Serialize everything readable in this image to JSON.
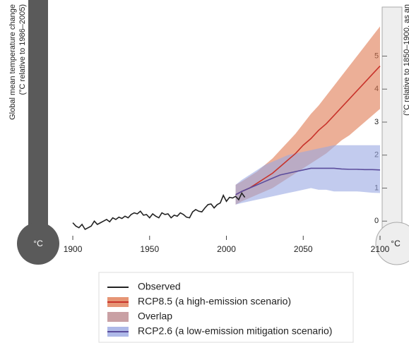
{
  "chart_data": {
    "type": "line",
    "y_axis_label": [
      "Global mean temperature change",
      "(°C relative to 1986–2005)"
    ],
    "y2_axis_label": "(°C relative to 1850–1900, as an",
    "unit_label": "°C",
    "xlim": [
      1894,
      2100
    ],
    "xticks": [
      1900,
      1950,
      2000,
      2050,
      2100
    ],
    "y2lim": [
      -0.4,
      6.7
    ],
    "y2ticks": [
      0,
      1,
      2,
      3,
      4,
      5
    ],
    "series": [
      {
        "name": "Observed",
        "color": "#222222",
        "axis": "y2",
        "x": [
          1900,
          1902,
          1904,
          1906,
          1908,
          1910,
          1912,
          1914,
          1916,
          1918,
          1920,
          1922,
          1924,
          1926,
          1928,
          1930,
          1932,
          1934,
          1936,
          1938,
          1940,
          1942,
          1944,
          1946,
          1948,
          1950,
          1952,
          1954,
          1956,
          1958,
          1960,
          1962,
          1964,
          1966,
          1968,
          1970,
          1972,
          1974,
          1976,
          1978,
          1980,
          1982,
          1984,
          1986,
          1988,
          1990,
          1992,
          1994,
          1996,
          1998,
          2000,
          2002,
          2004,
          2006,
          2008,
          2010,
          2012
        ],
        "values": [
          -0.05,
          -0.15,
          -0.2,
          -0.1,
          -0.25,
          -0.2,
          -0.15,
          0.0,
          -0.1,
          -0.05,
          0.0,
          0.05,
          -0.02,
          0.1,
          0.05,
          0.12,
          0.08,
          0.15,
          0.1,
          0.2,
          0.25,
          0.22,
          0.3,
          0.18,
          0.2,
          0.1,
          0.22,
          0.15,
          0.1,
          0.25,
          0.2,
          0.22,
          0.1,
          0.18,
          0.15,
          0.25,
          0.2,
          0.12,
          0.1,
          0.28,
          0.35,
          0.3,
          0.28,
          0.4,
          0.5,
          0.52,
          0.4,
          0.5,
          0.55,
          0.78,
          0.6,
          0.72,
          0.7,
          0.75,
          0.65,
          0.85,
          0.72
        ]
      },
      {
        "name": "RCP8.5 (a high-emission scenario)",
        "color": "#c8332b",
        "band_color": "#e07a52",
        "axis": "y2",
        "x": [
          2006,
          2010,
          2015,
          2020,
          2025,
          2030,
          2035,
          2040,
          2045,
          2050,
          2055,
          2060,
          2065,
          2070,
          2075,
          2080,
          2085,
          2090,
          2095,
          2100
        ],
        "values": [
          0.8,
          0.9,
          1.0,
          1.15,
          1.3,
          1.45,
          1.65,
          1.85,
          2.05,
          2.3,
          2.5,
          2.75,
          2.95,
          3.2,
          3.45,
          3.7,
          3.95,
          4.2,
          4.45,
          4.7
        ],
        "lower": [
          0.5,
          0.6,
          0.7,
          0.8,
          0.9,
          1.0,
          1.15,
          1.3,
          1.45,
          1.6,
          1.75,
          1.9,
          2.05,
          2.25,
          2.45,
          2.6,
          2.8,
          3.0,
          3.2,
          3.4
        ],
        "upper": [
          1.1,
          1.2,
          1.35,
          1.5,
          1.7,
          1.9,
          2.15,
          2.4,
          2.65,
          2.95,
          3.25,
          3.5,
          3.8,
          4.1,
          4.4,
          4.7,
          5.0,
          5.3,
          5.6,
          5.9
        ]
      },
      {
        "name": "Overlap",
        "color": "#c9a0a4"
      },
      {
        "name": "RCP2.6 (a low-emission mitigation scenario)",
        "color": "#5b4c9c",
        "band_color": "#9aa8e2",
        "axis": "y2",
        "x": [
          2006,
          2010,
          2015,
          2020,
          2025,
          2030,
          2035,
          2040,
          2045,
          2050,
          2055,
          2060,
          2065,
          2070,
          2075,
          2080,
          2085,
          2090,
          2095,
          2100
        ],
        "values": [
          0.8,
          0.9,
          1.0,
          1.1,
          1.2,
          1.3,
          1.4,
          1.45,
          1.5,
          1.55,
          1.6,
          1.6,
          1.6,
          1.6,
          1.58,
          1.57,
          1.57,
          1.56,
          1.56,
          1.55
        ],
        "lower": [
          0.5,
          0.55,
          0.6,
          0.65,
          0.7,
          0.75,
          0.8,
          0.85,
          0.9,
          0.95,
          1.0,
          0.95,
          0.95,
          0.9,
          0.9,
          0.9,
          0.9,
          0.88,
          0.86,
          0.85
        ],
        "upper": [
          1.1,
          1.25,
          1.4,
          1.55,
          1.7,
          1.8,
          1.9,
          2.0,
          2.05,
          2.1,
          2.15,
          2.2,
          2.25,
          2.3,
          2.3,
          2.3,
          2.3,
          2.3,
          2.3,
          2.3
        ]
      }
    ]
  }
}
